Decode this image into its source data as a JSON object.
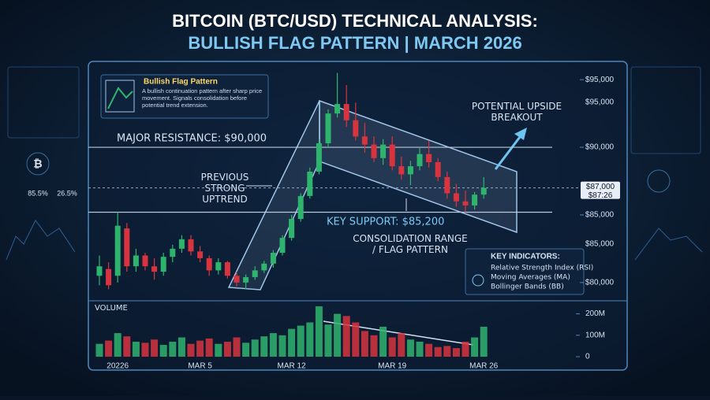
{
  "chart_data": {
    "type": "candlestick",
    "title": "BITCOIN (BTC/USD) TECHNICAL ANALYSIS:",
    "subtitle": "BULLISH FLAG PATTERN | MARCH 2026",
    "categories": [
      null,
      null,
      "20226",
      null,
      null,
      null,
      null,
      null,
      null,
      null,
      null,
      "MAR 5",
      null,
      null,
      null,
      null,
      null,
      null,
      null,
      null,
      null,
      "MAR 12",
      null,
      null,
      null,
      null,
      null,
      null,
      null,
      null,
      null,
      null,
      "MAR 19",
      null,
      null,
      null,
      null,
      null,
      null,
      null,
      null,
      null,
      "MAR 26"
    ],
    "candles": {
      "open": [
        80500,
        81000,
        80500,
        84000,
        81200,
        82000,
        81200,
        80800,
        81900,
        82500,
        83200,
        82300,
        81800,
        80900,
        81500,
        80500,
        80000,
        80400,
        80900,
        81400,
        82200,
        83300,
        84700,
        86400,
        88200,
        90300,
        92500,
        93200,
        92000,
        90800,
        90200,
        89200,
        90200,
        88600,
        88000,
        88600,
        89500,
        88900,
        87800,
        86600,
        86000,
        85700,
        86500
      ],
      "high": [
        82000,
        81500,
        85200,
        84400,
        82500,
        82200,
        81800,
        82200,
        82800,
        83500,
        83500,
        82700,
        82000,
        81800,
        81600,
        80800,
        80600,
        81200,
        81600,
        82400,
        83500,
        85000,
        86600,
        88500,
        90600,
        92800,
        95500,
        94600,
        93300,
        91800,
        90800,
        90600,
        90800,
        89300,
        89000,
        90000,
        90500,
        89200,
        88200,
        87300,
        86800,
        86700,
        87800
      ],
      "low": [
        79800,
        79500,
        80000,
        80800,
        80800,
        80900,
        80200,
        80500,
        81500,
        82200,
        82000,
        81500,
        80500,
        80600,
        80300,
        79700,
        79500,
        80200,
        80700,
        81100,
        82000,
        83100,
        84500,
        86200,
        88000,
        90000,
        92200,
        91500,
        90500,
        89600,
        88900,
        88700,
        88300,
        87600,
        87200,
        88300,
        88500,
        87500,
        86200,
        85600,
        85200,
        85400,
        86200
      ],
      "close": [
        81200,
        79800,
        84200,
        81200,
        82000,
        81200,
        80800,
        81900,
        82500,
        83200,
        82300,
        81800,
        80900,
        81500,
        80500,
        80000,
        80400,
        80900,
        81400,
        82200,
        83300,
        84700,
        86400,
        88200,
        90300,
        92500,
        93200,
        92000,
        90800,
        90200,
        89200,
        90200,
        88600,
        88000,
        88600,
        89500,
        88900,
        87800,
        86600,
        86000,
        85700,
        86500,
        87000
      ]
    },
    "up_color": "#2fb46e",
    "down_color": "#d8343f",
    "ylim": [
      79000,
      96000
    ],
    "yticks": [
      {
        "value": 80000,
        "label": "$80,000"
      },
      {
        "value": 85000,
        "label": "$85,000"
      },
      {
        "value": 90000,
        "label": "$90,000"
      },
      {
        "value": 95000,
        "label": "$95,000"
      }
    ],
    "extra_price_labels": [
      "$95,000",
      "$85,000"
    ],
    "current_price": {
      "value": 87000,
      "label": "$87,000"
    },
    "current_time_label": "$87:26",
    "resistance": 90000,
    "resistance_label": "MAJOR RESISTANCE: $90,000",
    "support": 85200,
    "support_label": "KEY SUPPORT: $85,200",
    "volume": {
      "label": "VOLUME",
      "ylim": [
        0,
        250
      ],
      "yticks": [
        0,
        {
          "value": 100,
          "label": "100M"
        },
        {
          "value": 200,
          "label": "200M"
        }
      ],
      "values": [
        60,
        75,
        110,
        95,
        70,
        65,
        80,
        55,
        70,
        90,
        60,
        75,
        85,
        60,
        70,
        90,
        65,
        80,
        95,
        110,
        100,
        130,
        145,
        160,
        235,
        150,
        200,
        190,
        160,
        120,
        100,
        140,
        90,
        110,
        80,
        70,
        60,
        45,
        50,
        40,
        70,
        90,
        140
      ]
    },
    "annotations": {
      "uptrend": "PREVIOUS STRONG UPTREND",
      "breakout": "POTENTIAL UPSIDE BREAKOUT",
      "consolidation": "CONSOLIDATION RANGE / FLAG PATTERN"
    },
    "legend_box": {
      "title": "Bullish Flag Pattern",
      "text": "A bullish continuation pattern after sharp price movement. Signals consolidation before potential trend extension."
    },
    "indicators": {
      "title": "KEY INDICATORS:",
      "items": [
        "Relative Strength Index (RSI)",
        "Moving Averages (MA)",
        "Bollinger Bands (BB)"
      ]
    },
    "side_stats": [
      "85.5%",
      "26.5%"
    ]
  }
}
